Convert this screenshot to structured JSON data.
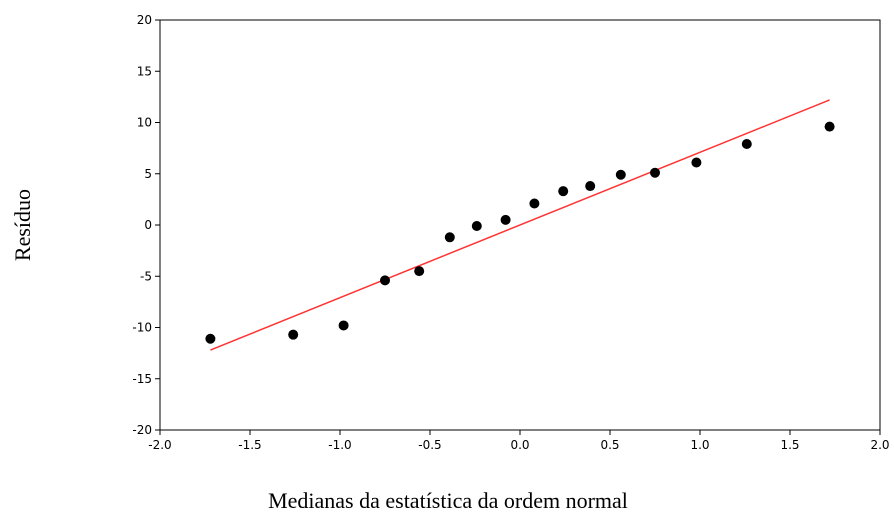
{
  "chart_data": {
    "type": "scatter",
    "xlabel": "Medianas da estatística da ordem normal",
    "ylabel": "Resíduo",
    "xlim": [
      -2.0,
      2.0
    ],
    "ylim": [
      -20,
      20
    ],
    "x_ticks": [
      "-2.0",
      "-1.5",
      "-1.0",
      "-0.5",
      "0.0",
      "0.5",
      "1.0",
      "1.5",
      "2.0"
    ],
    "y_ticks": [
      "-20",
      "-15",
      "-10",
      "-5",
      "0",
      "5",
      "10",
      "15",
      "20"
    ],
    "grid": false,
    "series": [
      {
        "x": [
          -1.72,
          -1.26,
          -0.98,
          -0.75,
          -0.56,
          -0.39,
          -0.24,
          -0.08,
          0.08,
          0.24,
          0.39,
          0.56,
          0.75,
          0.98,
          1.26,
          1.72
        ],
        "y": [
          -11.1,
          -10.7,
          -9.8,
          -5.4,
          -4.5,
          -1.2,
          -0.1,
          0.5,
          2.1,
          3.3,
          3.8,
          4.9,
          5.1,
          6.1,
          7.9,
          9.6
        ]
      }
    ],
    "fit_line": {
      "x": [
        -1.72,
        1.72
      ],
      "y": [
        -12.2,
        12.2
      ]
    },
    "colors": {
      "points": "#000000",
      "fit_line": "#ff3333",
      "axes": "#000000"
    }
  }
}
